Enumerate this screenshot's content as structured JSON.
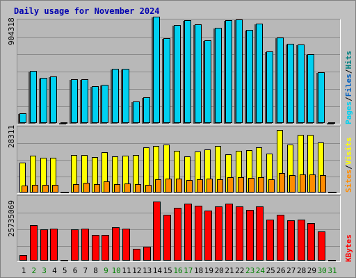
{
  "title": "Daily usage for November 2024",
  "colors": {
    "pages": "#00d0f0",
    "files": "#0060c0",
    "hits": "#008080",
    "visits": "#ffff00",
    "sites": "#ff8c00",
    "kbytes": "#ff0000",
    "weekend_label": "#008000",
    "weekday_label": "#000000"
  },
  "chart_data": [
    {
      "type": "bar",
      "panel": "hits",
      "y_max_label": "904318",
      "legend": [
        "Pages",
        "Files",
        "Hits"
      ],
      "categories": [
        "1",
        "2",
        "3",
        "4",
        "5",
        "6",
        "7",
        "8",
        "9",
        "10",
        "11",
        "12",
        "13",
        "14",
        "15",
        "16",
        "17",
        "18",
        "19",
        "20",
        "21",
        "22",
        "23",
        "24",
        "25",
        "26",
        "27",
        "28",
        "29",
        "30",
        "31"
      ],
      "weekend_days": [
        2,
        3,
        9,
        10,
        16,
        17,
        23,
        24,
        30,
        31
      ],
      "ylim": [
        0,
        904318
      ],
      "series": [
        {
          "name": "Pages",
          "values": [
            88000,
            462000,
            400000,
            410000,
            0,
            388000,
            389000,
            329000,
            340000,
            480000,
            478000,
            188000,
            228000,
            941000,
            749000,
            866000,
            908000,
            871000,
            735000,
            841000,
            913000,
            916000,
            826000,
            877000,
            633000,
            755000,
            703000,
            694000,
            612000,
            448000,
            0
          ]
        }
      ]
    },
    {
      "type": "bar",
      "panel": "visits",
      "y_max_label": "28311",
      "legend": [
        "Sites",
        "Visits"
      ],
      "categories": [
        "1",
        "2",
        "3",
        "4",
        "5",
        "6",
        "7",
        "8",
        "9",
        "10",
        "11",
        "12",
        "13",
        "14",
        "15",
        "16",
        "17",
        "18",
        "19",
        "20",
        "21",
        "22",
        "23",
        "24",
        "25",
        "26",
        "27",
        "28",
        "29",
        "30",
        "31"
      ],
      "ylim": [
        0,
        28311
      ],
      "series": [
        {
          "name": "Visits",
          "values": [
            13000,
            16100,
            15200,
            15100,
            0,
            16500,
            16500,
            15600,
            17600,
            15900,
            16000,
            16500,
            19700,
            20300,
            21000,
            18400,
            15800,
            18100,
            19000,
            20500,
            16800,
            18400,
            18700,
            19800,
            17000,
            27500,
            21000,
            25200,
            25200,
            21800,
            0
          ]
        },
        {
          "name": "Sites",
          "values": [
            3000,
            3500,
            3500,
            3300,
            0,
            3700,
            4200,
            3800,
            4800,
            3600,
            4000,
            3700,
            3400,
            5800,
            6100,
            6000,
            5600,
            5800,
            6200,
            5900,
            6600,
            6700,
            6300,
            6800,
            5800,
            8600,
            7600,
            7800,
            7900,
            7600,
            0
          ]
        }
      ]
    },
    {
      "type": "bar",
      "panel": "kbytes",
      "y_max_label": "25735069",
      "legend": [
        "KBytes"
      ],
      "categories": [
        "1",
        "2",
        "3",
        "4",
        "5",
        "6",
        "7",
        "8",
        "9",
        "10",
        "11",
        "12",
        "13",
        "14",
        "15",
        "16",
        "17",
        "18",
        "19",
        "20",
        "21",
        "22",
        "23",
        "24",
        "25",
        "26",
        "27",
        "28",
        "29",
        "30",
        "31"
      ],
      "ylim": [
        0,
        25735069
      ],
      "series": [
        {
          "name": "KBytes",
          "values": [
            2300000,
            14500000,
            12700000,
            13000000,
            0,
            12600000,
            12900000,
            10500000,
            10400000,
            13600000,
            13000000,
            4800000,
            5600000,
            24000000,
            18800000,
            21500000,
            23300000,
            22300000,
            20500000,
            22200000,
            23300000,
            22200000,
            20600000,
            22000000,
            16800000,
            18600000,
            16500000,
            16600000,
            15300000,
            11800000,
            0
          ]
        }
      ]
    }
  ]
}
